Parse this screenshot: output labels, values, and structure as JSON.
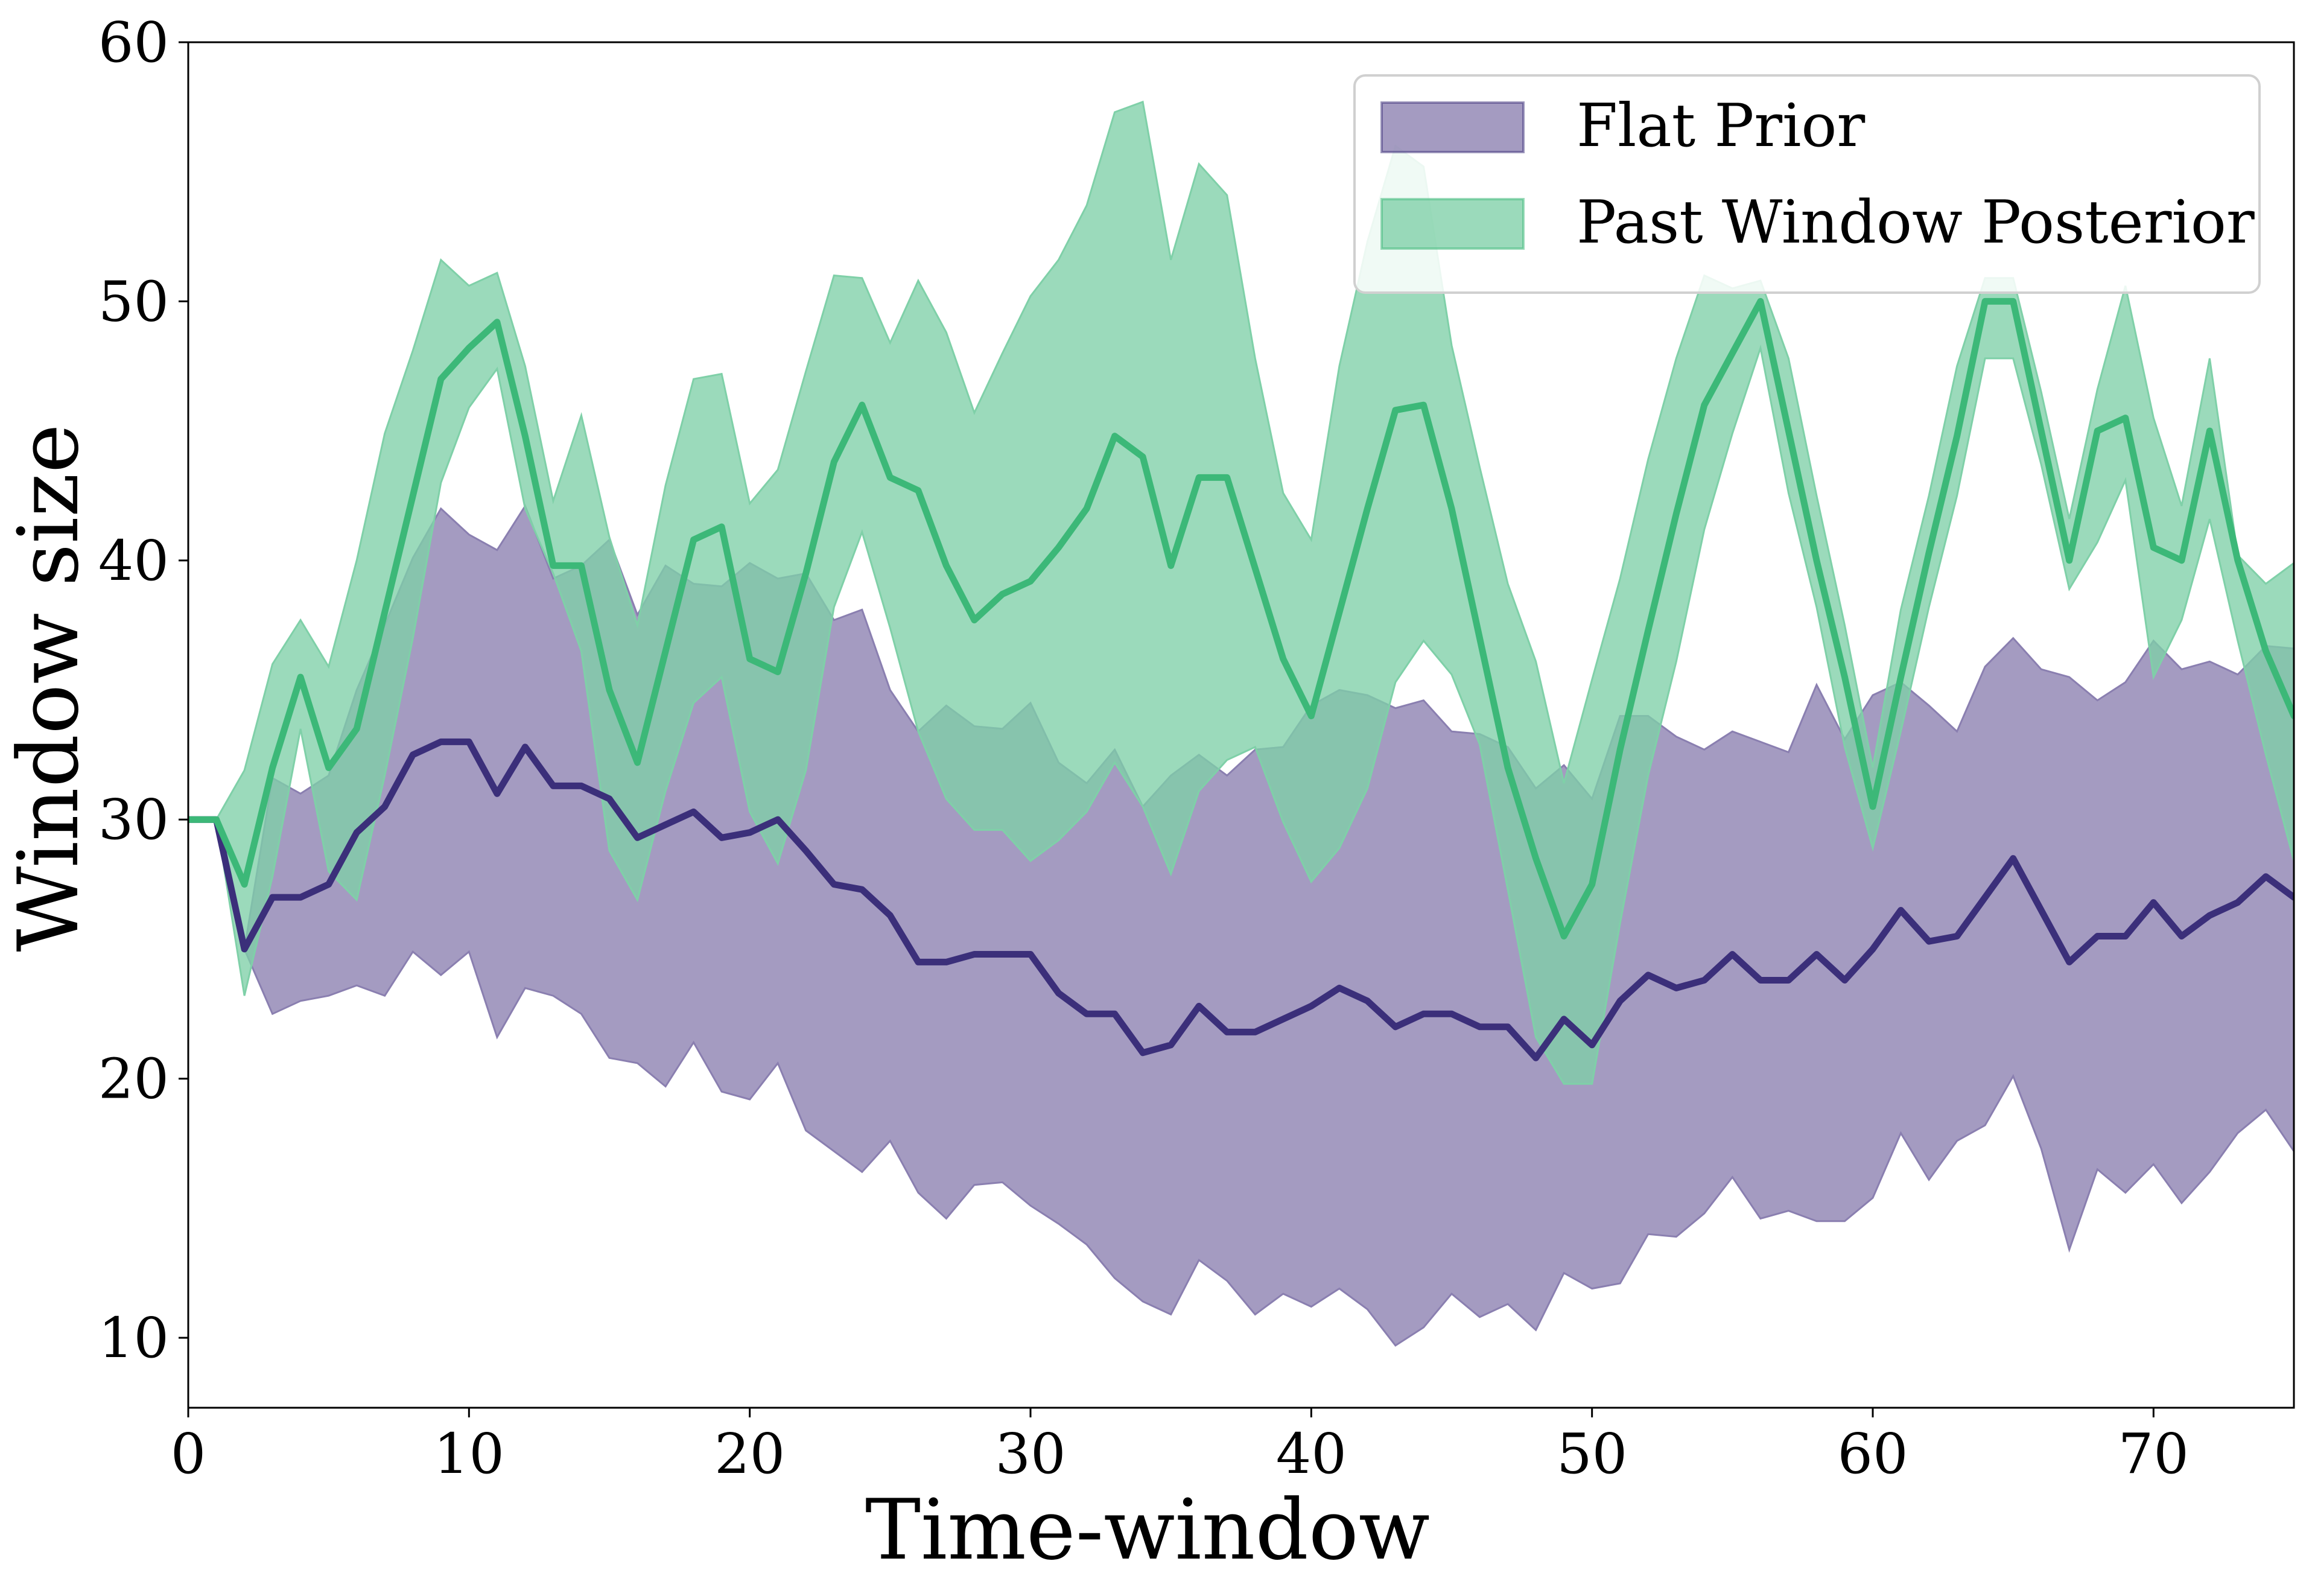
{
  "chart_data": {
    "type": "area",
    "xlabel": "Time-window",
    "ylabel": "Window size",
    "xlim": [
      0,
      75
    ],
    "ylim": [
      7.3,
      60
    ],
    "xticks": [
      "0",
      "10",
      "20",
      "30",
      "40",
      "50",
      "60",
      "70"
    ],
    "yticks": [
      "10",
      "20",
      "30",
      "40",
      "50",
      "60"
    ],
    "grid": false,
    "legend_position": "top-right",
    "x": [
      0,
      1,
      2,
      3,
      4,
      5,
      6,
      7,
      8,
      9,
      10,
      11,
      12,
      13,
      14,
      15,
      16,
      17,
      18,
      19,
      20,
      21,
      22,
      23,
      24,
      25,
      26,
      27,
      28,
      29,
      30,
      31,
      32,
      33,
      34,
      35,
      36,
      37,
      38,
      39,
      40,
      41,
      42,
      43,
      44,
      45,
      46,
      47,
      48,
      49,
      50,
      51,
      52,
      53,
      54,
      55,
      56,
      57,
      58,
      59,
      60,
      61,
      62,
      63,
      64,
      65,
      66,
      67,
      68,
      69,
      70,
      71,
      72,
      73,
      74,
      75
    ],
    "series": [
      {
        "name": "Flat Prior",
        "color": "#3b2f7a",
        "band_color": "#8a7fb0",
        "mean": [
          30,
          30,
          25,
          27,
          27,
          27.5,
          29.5,
          30.5,
          32.5,
          33,
          33,
          31,
          32.8,
          31.3,
          31.3,
          30.8,
          29.3,
          29.8,
          30.3,
          29.3,
          29.5,
          30,
          28.8,
          27.5,
          27.3,
          26.3,
          24.5,
          24.5,
          24.8,
          24.8,
          24.8,
          23.3,
          22.5,
          22.5,
          21,
          21.3,
          22.8,
          21.8,
          21.8,
          22.3,
          22.8,
          23.5,
          23,
          22,
          22.5,
          22.5,
          22,
          22,
          20.8,
          22.3,
          21.3,
          23,
          24,
          23.5,
          23.8,
          24.8,
          23.8,
          23.8,
          24.8,
          23.8,
          25,
          26.5,
          25.3,
          25.5,
          27,
          28.5,
          26.5,
          24.5,
          25.5,
          25.5,
          26.8,
          25.5,
          26.3,
          26.8,
          27.8,
          27
        ],
        "lower": [
          30,
          30,
          25,
          22.5,
          23,
          23.2,
          23.6,
          23.2,
          24.9,
          24,
          24.9,
          21.6,
          23.5,
          23.2,
          22.5,
          20.8,
          20.6,
          19.7,
          21.4,
          19.5,
          19.2,
          20.6,
          18,
          17.2,
          16.4,
          17.6,
          15.6,
          14.6,
          15.9,
          16,
          15.1,
          14.4,
          13.6,
          12.3,
          11.4,
          10.9,
          13,
          12.2,
          10.9,
          11.7,
          11.2,
          11.9,
          11.1,
          9.7,
          10.4,
          11.7,
          10.8,
          11.3,
          10.3,
          12.5,
          11.9,
          12.1,
          14,
          13.9,
          14.8,
          16.2,
          14.6,
          14.9,
          14.5,
          14.5,
          15.4,
          17.9,
          16.1,
          17.6,
          18.2,
          20.1,
          17.3,
          13.4,
          16.5,
          15.6,
          16.7,
          15.2,
          16.4,
          17.9,
          18.8,
          17.2
        ],
        "upper": [
          30,
          30,
          25,
          31.6,
          31,
          31.7,
          35,
          37.5,
          40.1,
          42,
          41,
          40.4,
          42.1,
          39.3,
          39.8,
          40.8,
          37.9,
          39.8,
          39.1,
          39,
          39.9,
          39.3,
          39.5,
          37.7,
          38.1,
          35,
          33.4,
          34.4,
          33.6,
          33.5,
          34.5,
          32.2,
          31.4,
          32.7,
          30.5,
          31.7,
          32.5,
          31.7,
          32.7,
          32.8,
          34.4,
          35,
          34.8,
          34.3,
          34.6,
          33.4,
          33.3,
          32.8,
          31.2,
          32.1,
          30.8,
          34,
          34,
          33.2,
          32.7,
          33.4,
          33,
          32.6,
          35.2,
          33.1,
          34.8,
          35.3,
          34.4,
          33.4,
          35.9,
          37,
          35.8,
          35.5,
          34.6,
          35.3,
          36.9,
          35.8,
          36.1,
          35.6,
          36.7,
          36.6
        ]
      },
      {
        "name": "Past Window Posterior",
        "color": "#3cb878",
        "band_color": "#7fd0a8",
        "mean": [
          30,
          30,
          27.5,
          32,
          35.5,
          32,
          33.5,
          38,
          42.5,
          47,
          48.2,
          49.2,
          44.8,
          39.8,
          39.8,
          35,
          32.2,
          36.5,
          40.8,
          41.3,
          36.2,
          35.7,
          39.5,
          43.8,
          46,
          43.2,
          42.7,
          39.8,
          37.7,
          38.7,
          39.2,
          40.5,
          42,
          44.8,
          44,
          39.8,
          43.2,
          43.2,
          39.7,
          36.2,
          34,
          38,
          42,
          45.8,
          46,
          42,
          37,
          32,
          28.5,
          25.5,
          27.5,
          32.7,
          37.3,
          41.8,
          46,
          48,
          50,
          45,
          40,
          35.5,
          30.5,
          35.5,
          40.3,
          44.8,
          50,
          50,
          45,
          40,
          45,
          45.5,
          40.5,
          40,
          45,
          40,
          36.5,
          34
        ],
        "lower": [
          30,
          30,
          23.2,
          27.8,
          33.5,
          28,
          26.9,
          31.7,
          37,
          43,
          45.9,
          47.4,
          42,
          39.5,
          36.5,
          28.8,
          26.9,
          31.1,
          34.5,
          35.5,
          30.3,
          28.3,
          31.9,
          38.2,
          41.1,
          37.4,
          33.4,
          30.8,
          29.6,
          29.6,
          28.4,
          29.2,
          30.3,
          32.2,
          30.5,
          27.9,
          31.1,
          32.3,
          32.8,
          29.9,
          27.6,
          28.9,
          31.2,
          35.3,
          36.9,
          35.6,
          32.9,
          27.3,
          21.6,
          19.8,
          19.8,
          26,
          31.7,
          36.1,
          41.2,
          44.9,
          48.2,
          42.6,
          38.2,
          32.8,
          28.9,
          33.4,
          38.2,
          42.5,
          47.8,
          47.8,
          43.7,
          38.9,
          40.7,
          43.1,
          35.5,
          37.7,
          41.6,
          36.9,
          32.5,
          28.4
        ],
        "upper": [
          30,
          30,
          31.9,
          36,
          37.7,
          35.9,
          40,
          44.9,
          48.1,
          51.6,
          50.6,
          51.1,
          47.5,
          42.3,
          45.6,
          40.9,
          37.5,
          42.9,
          47,
          47.2,
          42.2,
          43.5,
          47.3,
          51,
          50.9,
          48.4,
          50.8,
          48.8,
          45.7,
          48,
          50.2,
          51.6,
          53.7,
          57.3,
          57.7,
          51.6,
          55.3,
          54.1,
          47.8,
          42.6,
          40.8,
          47.5,
          52.3,
          56,
          55.2,
          48.3,
          43.6,
          39.1,
          36.1,
          31.4,
          35.4,
          39.3,
          43.9,
          47.8,
          51,
          50.5,
          50.8,
          47.8,
          42.5,
          37.5,
          32,
          38.1,
          42.5,
          47.5,
          50.9,
          50.9,
          46.5,
          41.6,
          46.6,
          50.6,
          45.5,
          42.1,
          47.8,
          40.2,
          39.1,
          39.9
        ]
      }
    ]
  }
}
